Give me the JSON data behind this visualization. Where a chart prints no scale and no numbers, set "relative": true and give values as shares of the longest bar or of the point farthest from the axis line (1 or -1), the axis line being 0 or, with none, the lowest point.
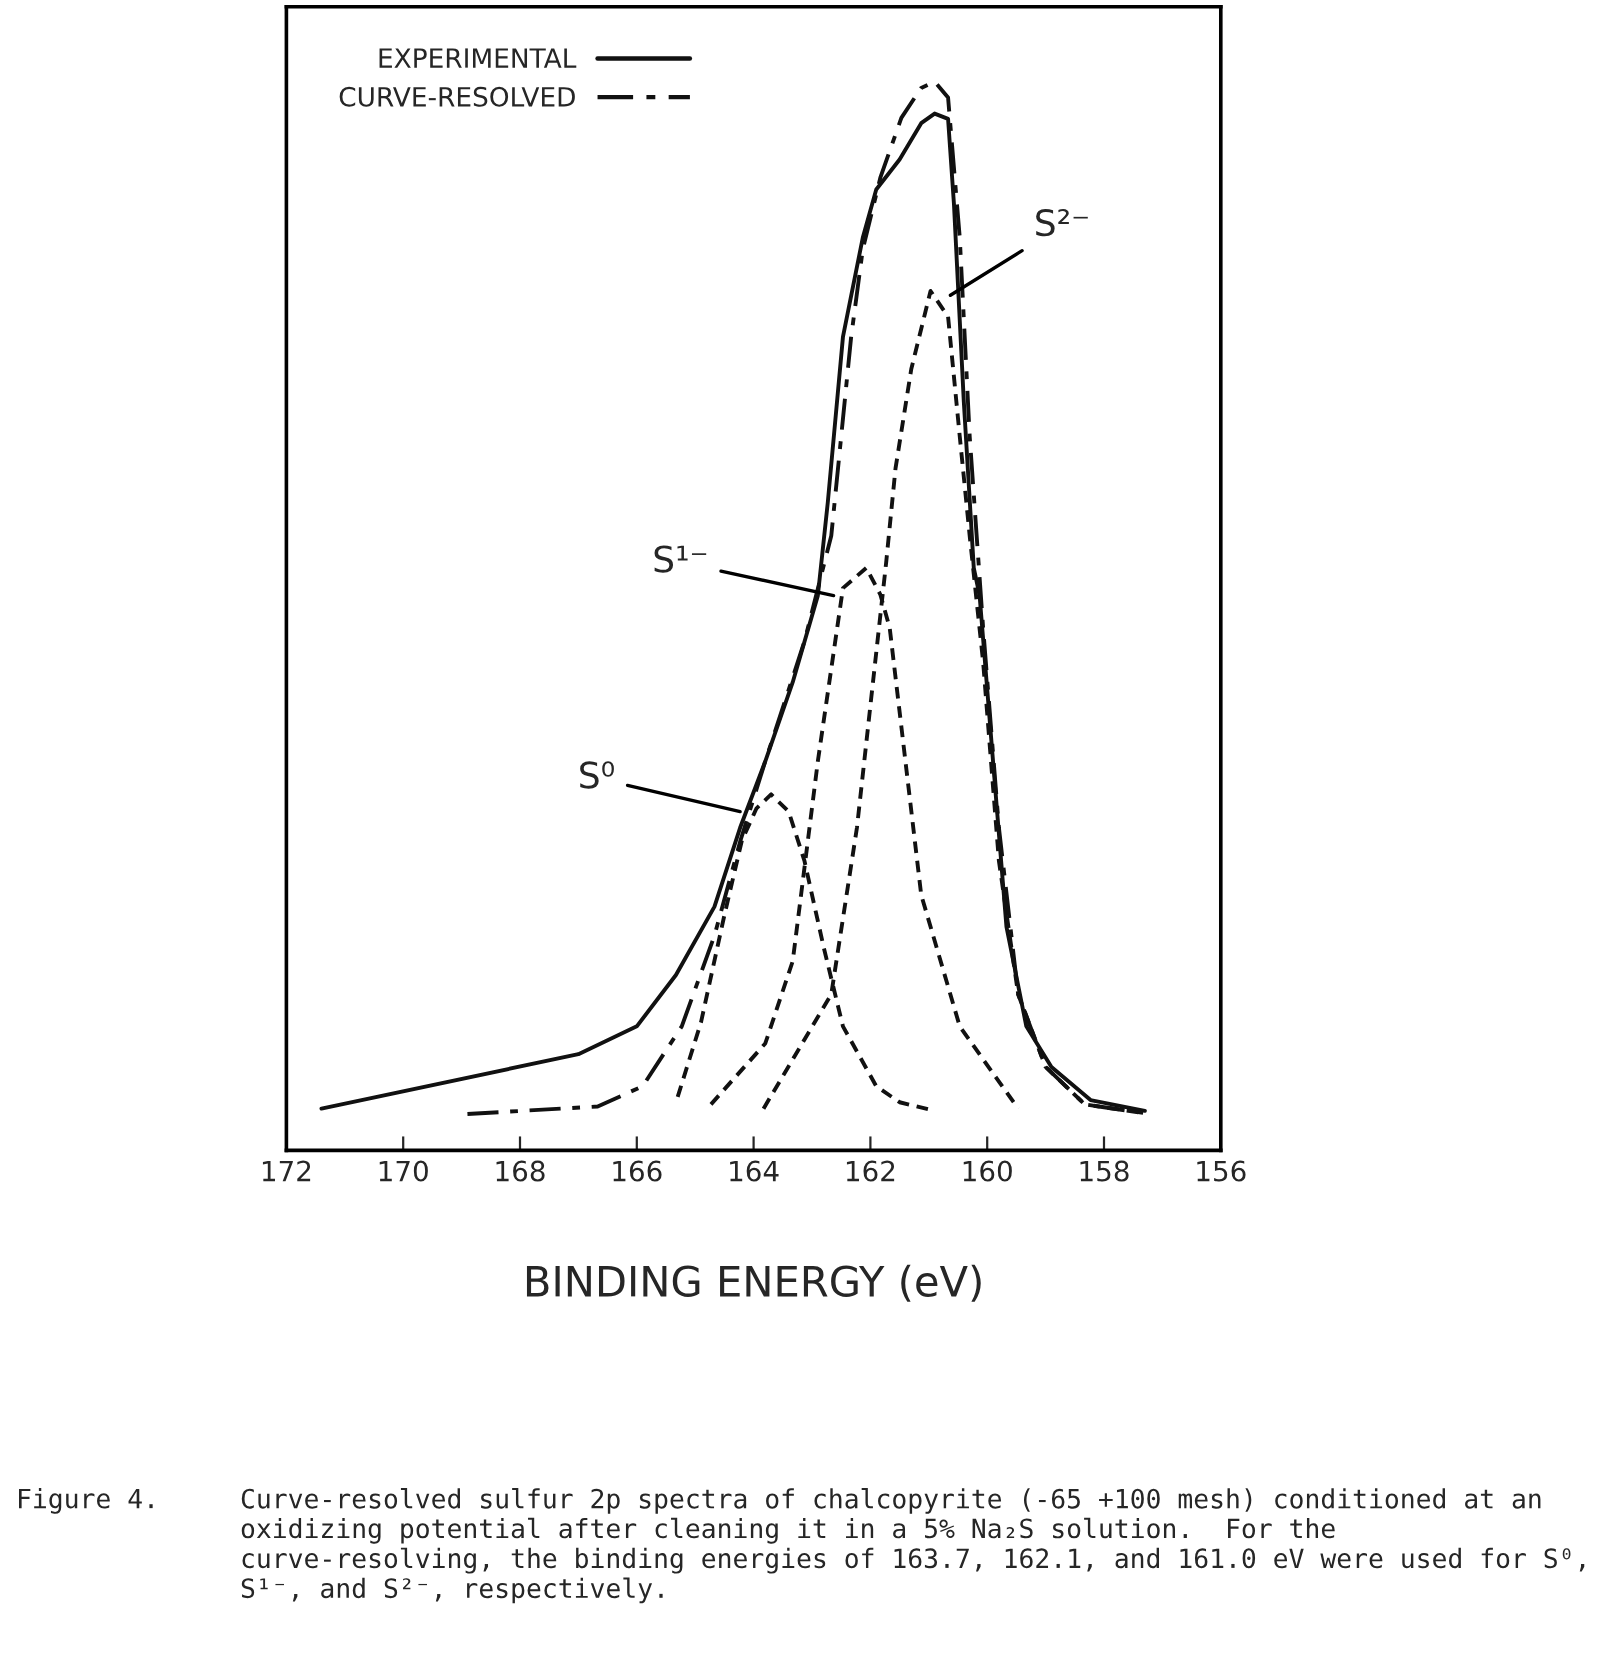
{
  "chart_data": {
    "type": "line",
    "relative": true,
    "xlabel": "BINDING ENERGY (eV)",
    "xlim": [
      172,
      156
    ],
    "xticks": [
      172,
      170,
      168,
      166,
      164,
      162,
      160,
      158,
      156
    ],
    "legend": "top left",
    "grid": false,
    "series": [
      {
        "name": "EXPERIMENTAL",
        "color": "#111111",
        "line_style": "solid",
        "x": [
          171.4,
          167.0,
          166.0,
          165.33,
          164.67,
          164.23,
          163.8,
          163.33,
          162.9,
          162.73,
          162.47,
          162.13,
          161.9,
          161.5,
          161.13,
          160.9,
          160.67,
          160.57,
          160.4,
          160.23,
          160.13,
          159.9,
          159.67,
          159.33,
          158.9,
          158.23,
          157.3
        ],
        "values": [
          0.039,
          0.09,
          0.116,
          0.164,
          0.228,
          0.302,
          0.364,
          0.438,
          0.519,
          0.606,
          0.761,
          0.854,
          0.899,
          0.927,
          0.961,
          0.97,
          0.965,
          0.886,
          0.7,
          0.545,
          0.519,
          0.364,
          0.209,
          0.116,
          0.078,
          0.047,
          0.037
        ]
      },
      {
        "name": "CURVE-RESOLVED",
        "color": "#111111",
        "line_style": "dashdot",
        "x": [
          168.9,
          166.67,
          165.9,
          165.23,
          164.67,
          164.23,
          163.8,
          163.13,
          162.67,
          162.33,
          162.13,
          161.83,
          161.47,
          161.13,
          160.9,
          160.67,
          160.47,
          160.3,
          160.07,
          159.8,
          159.47,
          159.0,
          158.33,
          157.33
        ],
        "values": [
          0.034,
          0.041,
          0.06,
          0.116,
          0.201,
          0.289,
          0.364,
          0.476,
          0.575,
          0.761,
          0.843,
          0.91,
          0.966,
          0.994,
          1.0,
          0.985,
          0.854,
          0.668,
          0.489,
          0.302,
          0.146,
          0.078,
          0.043,
          0.035
        ]
      },
      {
        "color": "#111111",
        "line_style": "dashed",
        "x": [
          165.3,
          164.9,
          164.5,
          164.2,
          163.95,
          163.7,
          163.4,
          163.13,
          162.8,
          162.47,
          161.9,
          161.5,
          160.9
        ],
        "values": [
          0.05,
          0.12,
          0.22,
          0.29,
          0.32,
          0.333,
          0.317,
          0.271,
          0.19,
          0.116,
          0.06,
          0.045,
          0.037
        ]
      },
      {
        "color": "#111111",
        "line_style": "dashed",
        "x": [
          164.73,
          163.8,
          163.33,
          162.9,
          162.47,
          162.07,
          161.83,
          161.67,
          161.13,
          160.47,
          159.47
        ],
        "values": [
          0.043,
          0.1,
          0.177,
          0.364,
          0.526,
          0.545,
          0.52,
          0.489,
          0.239,
          0.116,
          0.039
        ]
      },
      {
        "color": "#111111",
        "line_style": "dashed",
        "x": [
          163.83,
          162.67,
          162.23,
          161.73,
          161.57,
          161.3,
          160.97,
          160.67,
          160.47,
          160.3,
          160.07,
          159.8,
          159.47,
          159.0,
          158.33,
          157.33
        ],
        "values": [
          0.039,
          0.146,
          0.302,
          0.55,
          0.638,
          0.731,
          0.804,
          0.78,
          0.668,
          0.575,
          0.457,
          0.271,
          0.146,
          0.078,
          0.043,
          0.035
        ]
      }
    ],
    "annotations": [
      {
        "text": "S⁰",
        "x": 164.23,
        "y": 0.317
      },
      {
        "text": "S¹⁻",
        "x": 162.63,
        "y": 0.519
      },
      {
        "text": "S²⁻",
        "x": 160.63,
        "y": 0.8
      },
      "Figure 4.",
      "Curve-resolved sulfur 2p spectra of chalcopyrite (-65 +100 mesh) conditioned at an oxidizing potential after cleaning it in a 5% Na₂S solution.  For the curve-resolving, the binding energies of 163.7, 162.1, and 161.0 eV were used for S⁰, S¹⁻, and S²⁻, respectively."
    ]
  }
}
